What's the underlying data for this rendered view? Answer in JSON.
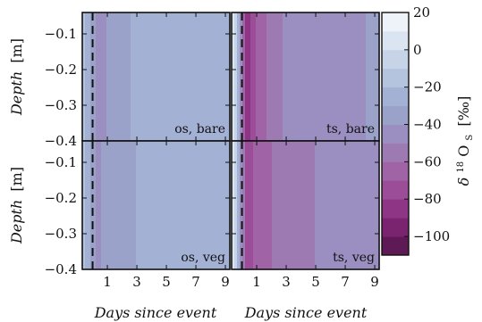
{
  "chart_data": {
    "type": "heatmap",
    "x_axis": {
      "label": "Days since event",
      "range": [
        -0.7,
        9.3
      ],
      "ticks": [
        1,
        3,
        5,
        7,
        9
      ],
      "event_marker_x": 0
    },
    "y_axis": {
      "label_word": "Depth",
      "label_unit": "[m]",
      "range": [
        -0.4,
        -0.04
      ],
      "ticks": [
        -0.1,
        -0.2,
        -0.3,
        -0.4
      ],
      "tick_labels": [
        "−0.1",
        "−0.2",
        "−0.3",
        "−0.4"
      ]
    },
    "colorbar": {
      "label_base": "δ",
      "label_sup": "18",
      "label_main": "O",
      "label_sub": "S",
      "label_unit": "[‰]",
      "range": [
        -110,
        20
      ],
      "levels": [
        -110,
        -100,
        -90,
        -80,
        -70,
        -60,
        -50,
        -40,
        -30,
        -20,
        -10,
        0,
        10,
        20
      ],
      "ticks": [
        20,
        0,
        -20,
        -40,
        -60,
        -80,
        -100
      ],
      "tick_labels": [
        "20",
        "0",
        "−20",
        "−40",
        "−60",
        "−80",
        "−100"
      ],
      "colors": [
        "#5e1a55",
        "#7a2470",
        "#8f3585",
        "#9b4d97",
        "#a064a6",
        "#9e7ab3",
        "#9a8fc0",
        "#9aa2ca",
        "#a3b1d4",
        "#b4c3de",
        "#c7d4e8",
        "#dbe4f1",
        "#eef3f9"
      ]
    },
    "panels": [
      {
        "label": "os, bare",
        "x": [
          -0.5,
          0.3,
          1,
          2,
          3,
          5,
          7,
          9.3
        ],
        "depth": [
          -0.04,
          -0.07,
          -0.1,
          -0.15,
          -0.2,
          -0.3,
          -0.4
        ],
        "values": [
          [
            -20,
            -45,
            -40,
            -32,
            -28,
            -26,
            -26,
            -24
          ],
          [
            -20,
            -40,
            -36,
            -30,
            -27,
            -26,
            -26,
            -24
          ],
          [
            -20,
            -32,
            -30,
            -27,
            -26,
            -25,
            -25,
            -24
          ],
          [
            -20,
            -28,
            -27,
            -25,
            -24,
            -24,
            -24,
            -24
          ],
          [
            -20,
            -27,
            -25,
            -24,
            -23,
            -23,
            -23,
            -23
          ],
          [
            -20,
            -26,
            -24,
            -23,
            -21,
            -20,
            -21,
            -22
          ],
          [
            -20,
            -26,
            -24,
            -23,
            -22,
            -21,
            -21,
            -22
          ]
        ]
      },
      {
        "label": "ts, bare",
        "x": [
          -0.5,
          0.3,
          1,
          2,
          3,
          5,
          7,
          9.3
        ],
        "depth": [
          -0.04,
          -0.07,
          -0.1,
          -0.15,
          -0.2,
          -0.3,
          -0.4
        ],
        "values": [
          [
            0,
            -85,
            -70,
            -55,
            -48,
            -45,
            -43,
            -38
          ],
          [
            0,
            -75,
            -62,
            -50,
            -45,
            -42,
            -40,
            -36
          ],
          [
            0,
            -60,
            -50,
            -42,
            -40,
            -38,
            -37,
            -40
          ],
          [
            0,
            -48,
            -42,
            -37,
            -35,
            -33,
            -35,
            -45
          ],
          [
            0,
            -40,
            -37,
            -33,
            -30,
            -30,
            -32,
            -40
          ],
          [
            0,
            -32,
            -30,
            -28,
            -27,
            -28,
            -30,
            -30
          ],
          [
            0,
            -28,
            -28,
            -27,
            -26,
            -27,
            -28,
            -28
          ]
        ]
      },
      {
        "label": "os, veg",
        "x": [
          -0.5,
          0.3,
          1,
          2,
          3,
          5,
          7,
          9.3
        ],
        "depth": [
          -0.04,
          -0.07,
          -0.1,
          -0.15,
          -0.2,
          -0.3,
          -0.4
        ],
        "values": [
          [
            -20,
            -42,
            -38,
            -32,
            -30,
            -28,
            -28,
            -26
          ],
          [
            -20,
            -40,
            -36,
            -31,
            -28,
            -26,
            -26,
            -26
          ],
          [
            -20,
            -36,
            -45,
            -30,
            -27,
            -25,
            -24,
            -25
          ],
          [
            -20,
            -32,
            -42,
            -28,
            -26,
            -23,
            -22,
            -24
          ],
          [
            -20,
            -28,
            -30,
            -26,
            -25,
            -23,
            -22,
            -24
          ],
          [
            -20,
            -26,
            -26,
            -25,
            -24,
            -23,
            -23,
            -24
          ],
          [
            -20,
            -26,
            -25,
            -24,
            -24,
            -24,
            -24,
            -24
          ]
        ]
      },
      {
        "label": "ts, veg",
        "x": [
          -0.5,
          0.3,
          1,
          2,
          3,
          5,
          7,
          9.3
        ],
        "depth": [
          -0.04,
          -0.07,
          -0.1,
          -0.15,
          -0.2,
          -0.3,
          -0.4
        ],
        "values": [
          [
            0,
            -75,
            -68,
            -60,
            -55,
            -50,
            -45,
            -42
          ],
          [
            0,
            -55,
            -52,
            -48,
            -44,
            -42,
            -40,
            -36
          ],
          [
            0,
            -45,
            -44,
            -40,
            -38,
            -36,
            -35,
            -34
          ],
          [
            0,
            -40,
            -45,
            -35,
            -33,
            -30,
            -30,
            -32
          ],
          [
            0,
            -35,
            -42,
            -30,
            -28,
            -27,
            -27,
            -30
          ],
          [
            0,
            -32,
            -38,
            -28,
            -26,
            -26,
            -26,
            -28
          ],
          [
            0,
            -30,
            -32,
            -27,
            -26,
            -26,
            -26,
            -27
          ]
        ]
      }
    ]
  }
}
